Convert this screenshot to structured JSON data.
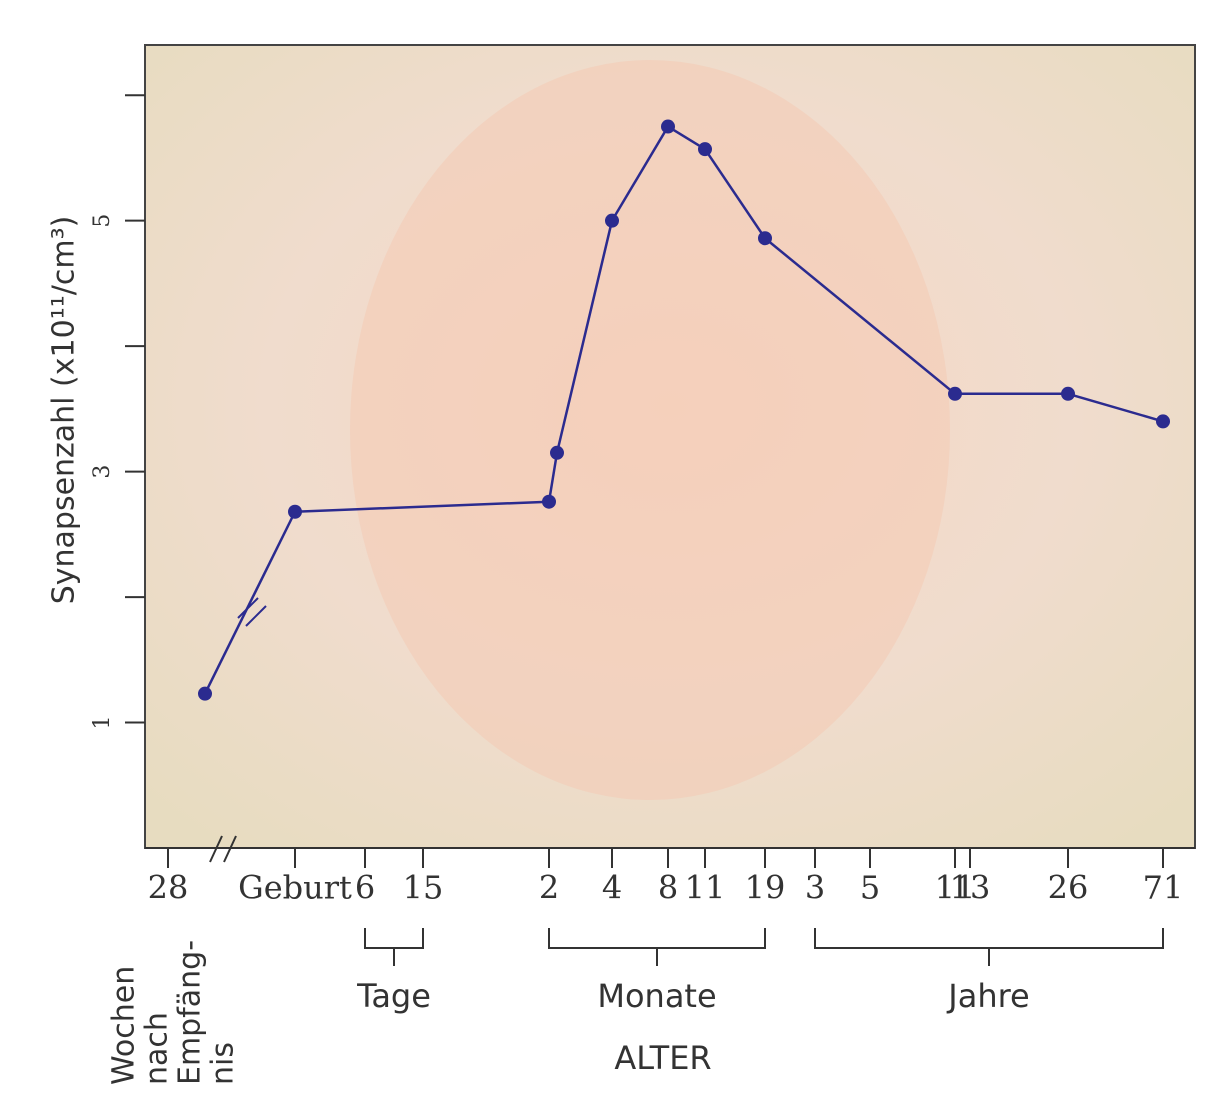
{
  "chart_data": {
    "type": "line",
    "y_label": "Synapsenzahl (x10¹¹/cm³)",
    "x_title": "ALTER",
    "categories": [
      "28",
      null,
      "Geburt",
      "6",
      "15",
      "2",
      null,
      "4",
      "8",
      "11",
      "19",
      "3",
      "5",
      "11",
      "13",
      "26",
      "71"
    ],
    "series": [
      {
        "name": "Synapsenzahl",
        "color": "#2b2b8f",
        "values": [
          null,
          1.23,
          2.68,
          null,
          null,
          2.76,
          3.15,
          5.0,
          5.75,
          5.57,
          4.86,
          null,
          null,
          3.62,
          null,
          3.62,
          3.4
        ]
      }
    ],
    "ylim": [
      0,
      6.4
    ],
    "yticks": [
      1,
      3,
      5
    ],
    "yminor_ticks": [
      2,
      4,
      6
    ],
    "groups": [
      "Tage",
      "Monate",
      "Jahre"
    ],
    "unit_label": [
      "Wochen",
      "nach",
      "Empfäng-",
      "nis"
    ]
  }
}
